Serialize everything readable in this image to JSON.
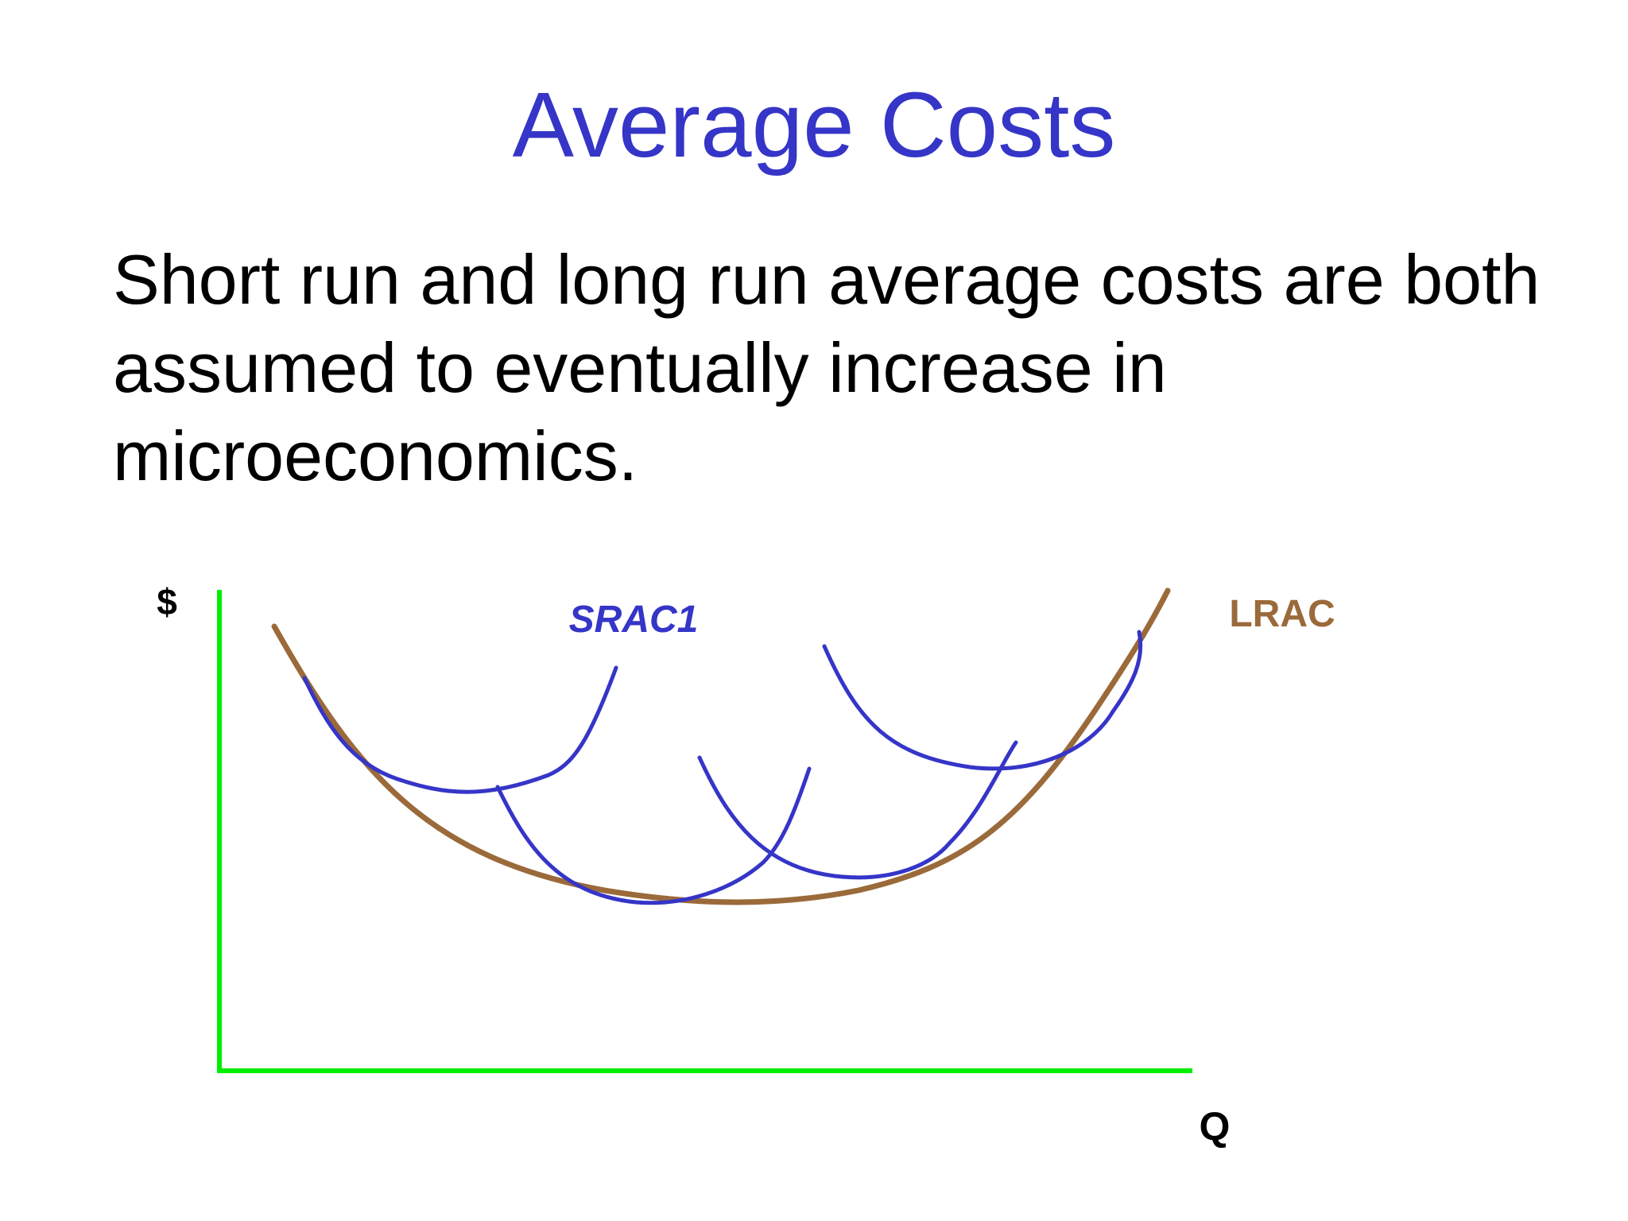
{
  "slide": {
    "title": "Average Costs",
    "body": "Short run and long run average costs are both assumed to eventually increase in microeconomics."
  },
  "diagram": {
    "y_axis_label": "$",
    "x_axis_label": "Q",
    "curve_labels": {
      "srac1": "SRAC1",
      "lrac": "LRAC"
    },
    "colors": {
      "title": "#3535c8",
      "axes": "#00ee00",
      "srac": "#3535c8",
      "lrac": "#9b6a3a",
      "text": "#000000"
    }
  }
}
